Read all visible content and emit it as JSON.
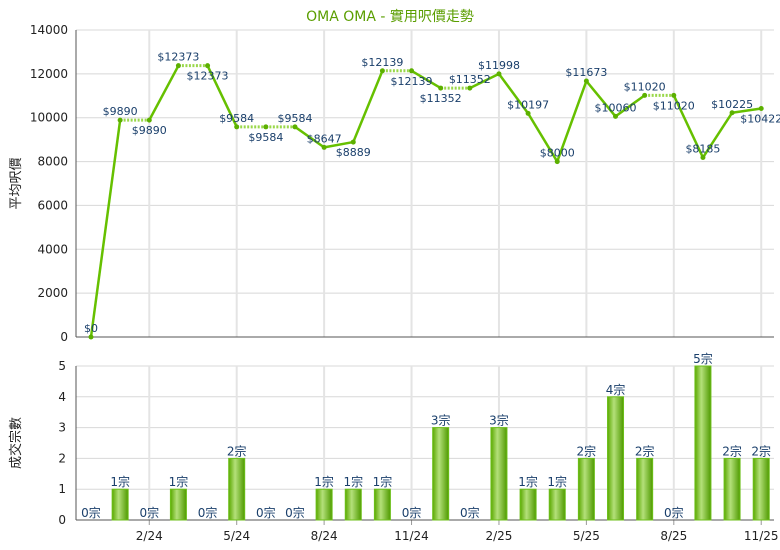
{
  "chart_data": [
    {
      "type": "line",
      "title": "OMA OMA - 實用呎價走勢",
      "ylabel": "平均呎價",
      "ylim": [
        0,
        14000
      ],
      "yticks": [
        "0",
        "2000",
        "4000",
        "6000",
        "8000",
        "10000",
        "12000",
        "14000"
      ],
      "grid": true,
      "x": [
        "12/23",
        "1/24",
        "2/24",
        "3/24",
        "4/24",
        "5/24",
        "6/24",
        "7/24",
        "8/24",
        "9/24",
        "10/24",
        "11/24",
        "12/24",
        "1/25",
        "2/25",
        "3/25",
        "4/25",
        "5/25",
        "6/25",
        "7/25",
        "8/25",
        "9/25",
        "10/25",
        "11/25"
      ],
      "values": [
        0,
        9890,
        9890,
        12373,
        12373,
        9584,
        9584,
        9584,
        8647,
        8889,
        12139,
        12139,
        11352,
        11352,
        11998,
        10197,
        8000,
        11673,
        10060,
        11020,
        11020,
        8185,
        10225,
        10422
      ],
      "data_labels": [
        "$0",
        "$9890",
        "$9890",
        "$12373",
        "$12373",
        "$9584",
        "$9584",
        "$9584",
        "$8647",
        "$8889",
        "$12139",
        "$12139",
        "$11352",
        "$11352",
        "$11998",
        "$10197",
        "$8000",
        "$11673",
        "$10060",
        "$11020",
        "$11020",
        "$8185",
        "$10225",
        "$10422"
      ],
      "color": "#66c000"
    },
    {
      "type": "bar",
      "ylabel": "成交宗數",
      "ylim": [
        0,
        5
      ],
      "yticks": [
        "0",
        "1",
        "2",
        "3",
        "4",
        "5"
      ],
      "grid": true,
      "categories": [
        "12/23",
        "1/24",
        "2/24",
        "3/24",
        "4/24",
        "5/24",
        "6/24",
        "7/24",
        "8/24",
        "9/24",
        "10/24",
        "11/24",
        "12/24",
        "1/25",
        "2/25",
        "3/25",
        "4/25",
        "5/25",
        "6/25",
        "7/25",
        "8/25",
        "9/25",
        "10/25",
        "11/25"
      ],
      "values": [
        0,
        1,
        0,
        1,
        0,
        2,
        0,
        0,
        1,
        1,
        1,
        0,
        3,
        0,
        3,
        1,
        1,
        2,
        4,
        2,
        0,
        5,
        2,
        2
      ],
      "data_labels": [
        "0宗",
        "1宗",
        "0宗",
        "1宗",
        "0宗",
        "2宗",
        "0宗",
        "0宗",
        "1宗",
        "1宗",
        "1宗",
        "0宗",
        "3宗",
        "0宗",
        "3宗",
        "1宗",
        "1宗",
        "2宗",
        "4宗",
        "2宗",
        "0宗",
        "5宗",
        "2宗",
        "2宗"
      ],
      "xtick_labels": [
        "2/24",
        "5/24",
        "8/24",
        "11/24",
        "2/25",
        "5/25",
        "8/25",
        "11/25"
      ],
      "color": "#66c000"
    }
  ]
}
